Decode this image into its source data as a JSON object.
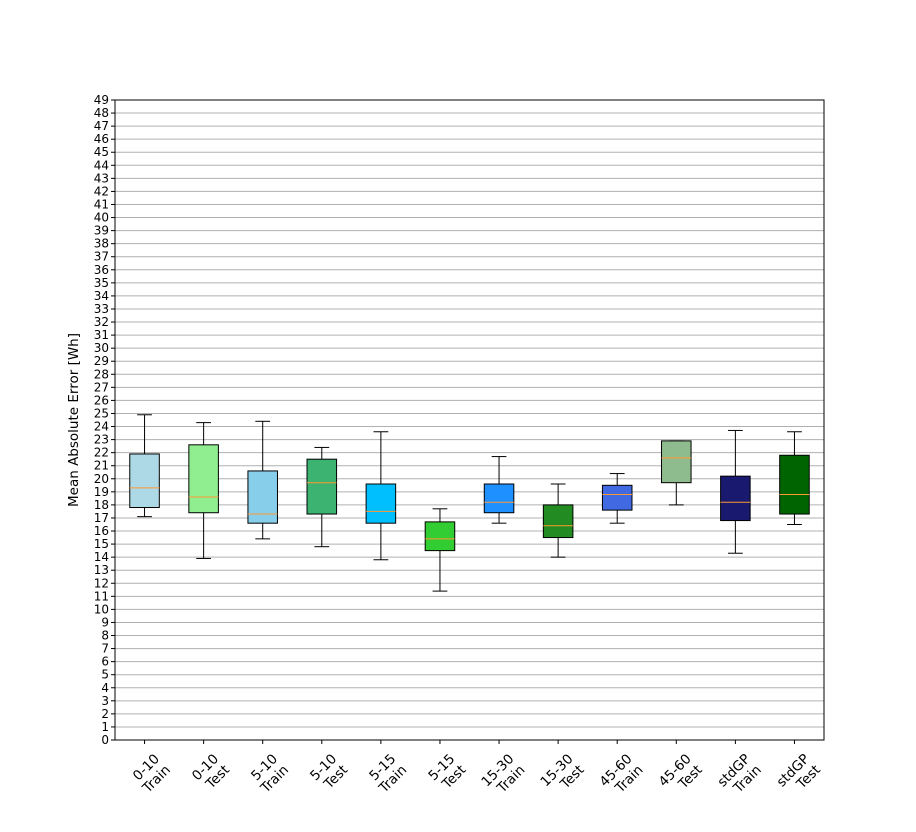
{
  "chart_data": {
    "type": "box",
    "title": "",
    "xlabel": "",
    "ylabel": "Mean Absolute Error [Wh]",
    "ylim": [
      0,
      49
    ],
    "y_ticks": [
      0,
      1,
      2,
      3,
      4,
      5,
      6,
      7,
      8,
      9,
      10,
      11,
      12,
      13,
      14,
      15,
      16,
      17,
      18,
      19,
      20,
      21,
      22,
      23,
      24,
      25,
      26,
      27,
      28,
      29,
      30,
      31,
      32,
      33,
      34,
      35,
      36,
      37,
      38,
      39,
      40,
      41,
      42,
      43,
      44,
      45,
      46,
      47,
      48,
      49
    ],
    "grid": "horizontal",
    "median_color": "#ff9933",
    "categories": [
      {
        "line1": "0-10",
        "line2": "Train"
      },
      {
        "line1": "0-10",
        "line2": "Test"
      },
      {
        "line1": "5-10",
        "line2": "Train"
      },
      {
        "line1": "5-10",
        "line2": "Test"
      },
      {
        "line1": "5-15",
        "line2": "Train"
      },
      {
        "line1": "5-15",
        "line2": "Test"
      },
      {
        "line1": "15-30",
        "line2": "Train"
      },
      {
        "line1": "15-30",
        "line2": "Test"
      },
      {
        "line1": "45-60",
        "line2": "Train"
      },
      {
        "line1": "45-60",
        "line2": "Test"
      },
      {
        "line1": "stdGP",
        "line2": "Train"
      },
      {
        "line1": "stdGP",
        "line2": "Test"
      }
    ],
    "boxes": [
      {
        "whislo": 17.1,
        "q1": 17.8,
        "med": 19.3,
        "q3": 21.9,
        "whishi": 24.9,
        "color": "#add8e6"
      },
      {
        "whislo": 13.9,
        "q1": 17.4,
        "med": 18.6,
        "q3": 22.6,
        "whishi": 24.3,
        "color": "#90ee90"
      },
      {
        "whislo": 15.4,
        "q1": 16.6,
        "med": 17.3,
        "q3": 20.6,
        "whishi": 24.4,
        "color": "#87ceeb"
      },
      {
        "whislo": 14.8,
        "q1": 17.3,
        "med": 19.7,
        "q3": 21.5,
        "whishi": 22.4,
        "color": "#3cb371"
      },
      {
        "whislo": 13.8,
        "q1": 16.6,
        "med": 17.5,
        "q3": 19.6,
        "whishi": 23.6,
        "color": "#00bfff"
      },
      {
        "whislo": 11.4,
        "q1": 14.5,
        "med": 15.4,
        "q3": 16.7,
        "whishi": 17.7,
        "color": "#32cd32"
      },
      {
        "whislo": 16.6,
        "q1": 17.4,
        "med": 18.2,
        "q3": 19.6,
        "whishi": 21.7,
        "color": "#1e90ff"
      },
      {
        "whislo": 14.0,
        "q1": 15.5,
        "med": 16.4,
        "q3": 18.0,
        "whishi": 19.6,
        "color": "#228b22"
      },
      {
        "whislo": 16.6,
        "q1": 17.6,
        "med": 18.8,
        "q3": 19.5,
        "whishi": 20.4,
        "color": "#4169e1"
      },
      {
        "whislo": 18.0,
        "q1": 19.7,
        "med": 21.6,
        "q3": 22.9,
        "whishi": 22.9,
        "color": "#8fbc8f"
      },
      {
        "whislo": 14.3,
        "q1": 16.8,
        "med": 18.2,
        "q3": 20.2,
        "whishi": 23.7,
        "color": "#191970"
      },
      {
        "whislo": 16.5,
        "q1": 17.3,
        "med": 18.8,
        "q3": 21.8,
        "whishi": 23.6,
        "color": "#006400"
      }
    ]
  }
}
